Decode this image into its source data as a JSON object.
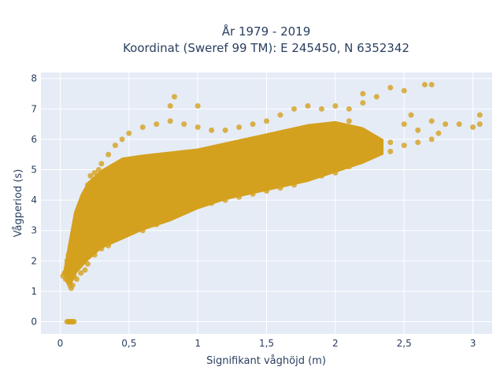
{
  "chart_data": {
    "type": "scatter",
    "title_line1": "År 1979 - 2019",
    "title_line2": "Koordinat (Sweref 99 TM): E 245450, N 6352342",
    "xlabel": "Signifikant våghöjd (m)",
    "ylabel": "Vågperiod (s)",
    "xlim": [
      -0.14,
      3.14
    ],
    "ylim": [
      -0.4,
      8.2
    ],
    "x_ticks": [
      0,
      0.5,
      1,
      1.5,
      2,
      2.5,
      3
    ],
    "x_tick_labels": [
      "0",
      "0,5",
      "1",
      "1,5",
      "2",
      "2,5",
      "3"
    ],
    "y_ticks": [
      0,
      1,
      2,
      3,
      4,
      5,
      6,
      7,
      8
    ],
    "y_tick_labels": [
      "0",
      "1",
      "2",
      "3",
      "4",
      "5",
      "6",
      "7",
      "8"
    ],
    "grid": true,
    "marker_color": "#D4A11E",
    "plot_background": "#E5ECF6",
    "grid_color": "#ffffff",
    "points": [
      [
        0.02,
        1.5
      ],
      [
        0.03,
        1.6
      ],
      [
        0.04,
        1.4
      ],
      [
        0.05,
        1.8
      ],
      [
        0.05,
        2.0
      ],
      [
        0.06,
        1.3
      ],
      [
        0.07,
        1.2
      ],
      [
        0.08,
        1.1
      ],
      [
        0.09,
        1.2
      ],
      [
        0.06,
        2.2
      ],
      [
        0.08,
        2.5
      ],
      [
        0.1,
        2.8
      ],
      [
        0.12,
        3.0
      ],
      [
        0.1,
        1.5
      ],
      [
        0.12,
        1.4
      ],
      [
        0.15,
        1.6
      ],
      [
        0.18,
        1.7
      ],
      [
        0.2,
        1.9
      ],
      [
        0.12,
        3.5
      ],
      [
        0.15,
        3.8
      ],
      [
        0.18,
        4.2
      ],
      [
        0.2,
        4.5
      ],
      [
        0.22,
        4.8
      ],
      [
        0.25,
        4.9
      ],
      [
        0.28,
        5.0
      ],
      [
        0.3,
        5.2
      ],
      [
        0.25,
        2.2
      ],
      [
        0.3,
        2.4
      ],
      [
        0.35,
        2.5
      ],
      [
        0.4,
        2.7
      ],
      [
        0.45,
        2.8
      ],
      [
        0.5,
        2.9
      ],
      [
        0.6,
        3.0
      ],
      [
        0.7,
        3.2
      ],
      [
        0.8,
        3.4
      ],
      [
        0.9,
        3.6
      ],
      [
        1.0,
        3.8
      ],
      [
        1.1,
        3.9
      ],
      [
        1.2,
        4.0
      ],
      [
        1.3,
        4.1
      ],
      [
        1.4,
        4.2
      ],
      [
        1.5,
        4.3
      ],
      [
        1.6,
        4.4
      ],
      [
        1.7,
        4.5
      ],
      [
        1.8,
        4.7
      ],
      [
        1.9,
        4.8
      ],
      [
        2.0,
        4.9
      ],
      [
        2.1,
        5.1
      ],
      [
        2.2,
        5.3
      ],
      [
        2.3,
        5.5
      ],
      [
        2.4,
        5.6
      ],
      [
        2.5,
        5.8
      ],
      [
        2.6,
        5.9
      ],
      [
        2.7,
        6.0
      ],
      [
        0.35,
        5.5
      ],
      [
        0.4,
        5.8
      ],
      [
        0.45,
        6.0
      ],
      [
        0.5,
        6.2
      ],
      [
        0.6,
        6.4
      ],
      [
        0.7,
        6.5
      ],
      [
        0.8,
        6.6
      ],
      [
        0.9,
        6.5
      ],
      [
        1.0,
        6.4
      ],
      [
        1.1,
        6.3
      ],
      [
        1.2,
        6.3
      ],
      [
        1.3,
        6.4
      ],
      [
        1.4,
        6.5
      ],
      [
        1.5,
        6.6
      ],
      [
        1.6,
        6.8
      ],
      [
        1.7,
        7.0
      ],
      [
        1.8,
        7.1
      ],
      [
        1.9,
        7.0
      ],
      [
        2.0,
        7.1
      ],
      [
        2.1,
        7.0
      ],
      [
        2.2,
        7.2
      ],
      [
        2.3,
        7.4
      ],
      [
        0.6,
        5.0
      ],
      [
        0.7,
        4.8
      ],
      [
        0.8,
        5.2
      ],
      [
        0.9,
        5.0
      ],
      [
        1.0,
        5.1
      ],
      [
        1.1,
        5.3
      ],
      [
        1.2,
        5.4
      ],
      [
        1.3,
        5.6
      ],
      [
        1.4,
        5.7
      ],
      [
        1.5,
        5.8
      ],
      [
        1.6,
        5.9
      ],
      [
        1.7,
        6.0
      ],
      [
        1.8,
        6.0
      ],
      [
        1.9,
        6.1
      ],
      [
        2.0,
        6.2
      ],
      [
        2.1,
        6.1
      ],
      [
        0.2,
        3.0
      ],
      [
        0.25,
        3.5
      ],
      [
        0.3,
        4.0
      ],
      [
        0.35,
        4.2
      ],
      [
        0.4,
        4.4
      ],
      [
        0.45,
        4.5
      ],
      [
        0.5,
        4.6
      ],
      [
        0.55,
        4.5
      ],
      [
        0.8,
        7.1
      ],
      [
        0.83,
        7.4
      ],
      [
        1.0,
        7.1
      ],
      [
        2.4,
        7.7
      ],
      [
        2.5,
        7.6
      ],
      [
        2.65,
        7.8
      ],
      [
        2.7,
        7.8
      ],
      [
        2.2,
        7.5
      ],
      [
        2.55,
        6.8
      ],
      [
        2.7,
        6.6
      ],
      [
        2.8,
        6.5
      ],
      [
        2.9,
        6.5
      ],
      [
        3.0,
        6.4
      ],
      [
        3.05,
        6.8
      ],
      [
        3.05,
        6.5
      ],
      [
        2.5,
        6.5
      ],
      [
        2.6,
        6.3
      ],
      [
        2.75,
        6.2
      ],
      [
        2.1,
        6.6
      ],
      [
        2.3,
        6.0
      ],
      [
        2.4,
        5.9
      ],
      [
        0.7,
        4.0
      ],
      [
        1.1,
        4.3
      ],
      [
        1.3,
        4.6
      ],
      [
        0.05,
        0.0
      ],
      [
        0.06,
        0.0
      ],
      [
        0.07,
        0.0
      ],
      [
        0.08,
        0.0
      ],
      [
        0.09,
        0.0
      ],
      [
        0.1,
        0.0
      ]
    ]
  }
}
